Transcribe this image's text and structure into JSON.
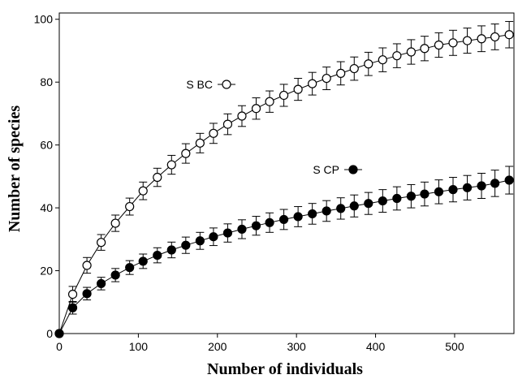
{
  "chart_data": {
    "type": "line",
    "xlabel": "Number of individuals",
    "ylabel": "Number of species",
    "xlim": [
      0,
      575
    ],
    "ylim": [
      0,
      102
    ],
    "xticks": [
      0,
      100,
      200,
      300,
      400,
      500
    ],
    "yticks": [
      0,
      20,
      40,
      60,
      80,
      100
    ],
    "grid": false,
    "x": [
      0,
      17,
      35,
      53,
      71,
      89,
      106,
      124,
      142,
      160,
      178,
      195,
      213,
      231,
      249,
      266,
      284,
      302,
      320,
      338,
      356,
      373,
      391,
      409,
      427,
      445,
      462,
      480,
      498,
      516,
      534,
      551,
      569
    ],
    "series": [
      {
        "name": "S BC",
        "marker": "open-circle",
        "color": "#000000",
        "values": [
          0,
          12.5,
          21.7,
          29.0,
          35.1,
          40.4,
          45.4,
          49.7,
          53.7,
          57.3,
          60.6,
          63.7,
          66.6,
          69.2,
          71.6,
          73.8,
          75.8,
          77.7,
          79.5,
          81.2,
          82.8,
          84.3,
          85.8,
          87.1,
          88.4,
          89.6,
          90.7,
          91.8,
          92.5,
          93.2,
          93.8,
          94.4,
          95.1
        ],
        "errors": [
          0,
          2.5,
          2.5,
          2.5,
          2.6,
          2.7,
          2.8,
          2.9,
          3.0,
          3.1,
          3.1,
          3.2,
          3.3,
          3.3,
          3.4,
          3.4,
          3.5,
          3.5,
          3.6,
          3.6,
          3.7,
          3.7,
          3.7,
          3.8,
          3.8,
          3.9,
          3.9,
          3.9,
          4.0,
          4.0,
          4.1,
          4.1,
          4.2
        ]
      },
      {
        "name": "S CP",
        "marker": "filled-circle",
        "color": "#000000",
        "values": [
          0,
          8.2,
          12.7,
          15.9,
          18.6,
          21.0,
          23.0,
          24.9,
          26.6,
          28.1,
          29.5,
          30.8,
          32.0,
          33.2,
          34.3,
          35.3,
          36.3,
          37.2,
          38.1,
          39.0,
          39.8,
          40.6,
          41.4,
          42.2,
          43.0,
          43.7,
          44.4,
          45.1,
          45.8,
          46.4,
          47.0,
          47.8,
          48.8
        ],
        "errors": [
          0,
          2.0,
          2.0,
          2.0,
          2.1,
          2.2,
          2.3,
          2.4,
          2.5,
          2.6,
          2.7,
          2.8,
          2.9,
          3.0,
          3.0,
          3.1,
          3.2,
          3.2,
          3.3,
          3.3,
          3.4,
          3.5,
          3.5,
          3.6,
          3.7,
          3.7,
          3.8,
          3.8,
          3.9,
          3.9,
          4.0,
          4.2,
          4.4
        ]
      }
    ]
  }
}
